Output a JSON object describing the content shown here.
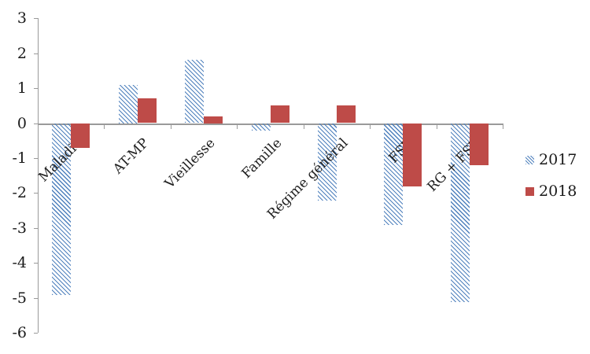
{
  "chart_data": {
    "type": "bar",
    "title": "",
    "xlabel": "",
    "ylabel": "",
    "categories": [
      "Maladie",
      "AT-MP",
      "Vieillesse",
      "Famille",
      "Régime général",
      "FSV",
      "RG + FSV"
    ],
    "series": [
      {
        "name": "2017",
        "style": "hatched",
        "color": "#4F81BD",
        "values": [
          -4.9,
          1.1,
          1.8,
          -0.2,
          -2.2,
          -2.9,
          -5.1
        ]
      },
      {
        "name": "2018",
        "style": "solid",
        "color": "#BE4B48",
        "values": [
          -0.7,
          0.7,
          0.2,
          0.5,
          0.5,
          -1.8,
          -1.2
        ]
      }
    ],
    "ylim": [
      -6,
      3
    ],
    "y_ticks": [
      3,
      2,
      1,
      0,
      -1,
      -2,
      -3,
      -4,
      -5,
      -6
    ],
    "grid": false,
    "legend_position": "right",
    "category_label_rotation_deg": -45
  },
  "legend": {
    "items": [
      {
        "label": "2017",
        "style": "hatched"
      },
      {
        "label": "2018",
        "style": "solid"
      }
    ]
  },
  "colors": {
    "series_2017_blue": "#4F81BD",
    "series_2018_red": "#BE4B48",
    "axis_gray": "#9a9a9a",
    "text": "#1a1a1a",
    "background": "#ffffff"
  }
}
